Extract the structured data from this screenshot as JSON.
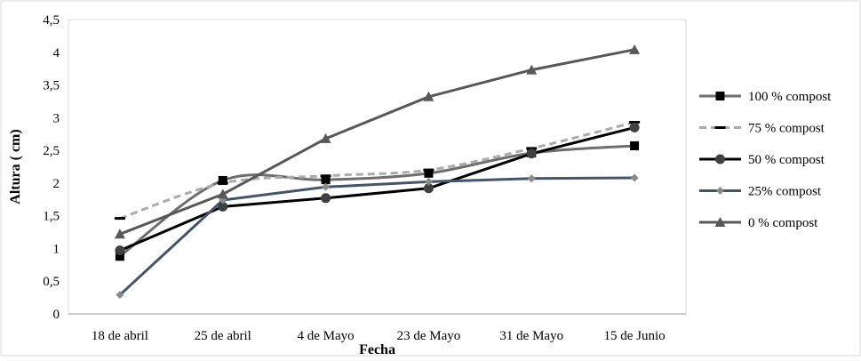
{
  "chart_data": {
    "type": "line",
    "title": "",
    "xlabel": "Fecha",
    "ylabel": "Altura ( cm)",
    "categories": [
      "18 de abril",
      "25 de abril",
      "4 de Mayo",
      "23 de Mayo",
      "31 de Mayo",
      "15 de Junio"
    ],
    "ylim": [
      0,
      4.5
    ],
    "yticks": [
      "0",
      "0,5",
      "1",
      "1,5",
      "2",
      "2,5",
      "3",
      "3,5",
      "4",
      "4,5"
    ],
    "ytick_values": [
      0,
      0.5,
      1,
      1.5,
      2,
      2.5,
      3,
      3.5,
      4,
      4.5
    ],
    "grid": false,
    "legend_position": "right",
    "series": [
      {
        "name": "100 % compost",
        "values": [
          0.88,
          2.04,
          2.05,
          2.15,
          2.46,
          2.57
        ],
        "color": "#6e6e6e",
        "dash": "solid",
        "marker": "square",
        "marker_color": "#000000",
        "smooth": true
      },
      {
        "name": "75 % compost",
        "values": [
          1.46,
          2.0,
          2.11,
          2.2,
          2.53,
          2.93
        ],
        "color": "#ababab",
        "dash": "dashed",
        "marker": "dash",
        "marker_color": "#000000",
        "smooth": true
      },
      {
        "name": "50 % compost",
        "values": [
          0.97,
          1.64,
          1.77,
          1.92,
          2.45,
          2.85
        ],
        "color": "#000000",
        "dash": "solid",
        "marker": "circle",
        "marker_color": "#404040",
        "smooth": false
      },
      {
        "name": "25% compost",
        "values": [
          0.29,
          1.74,
          1.94,
          2.02,
          2.07,
          2.08
        ],
        "color": "#44546a",
        "dash": "solid",
        "marker": "diamond",
        "marker_color": "#8a8a8a",
        "smooth": false
      },
      {
        "name": "0 % compost",
        "values": [
          1.22,
          1.83,
          2.68,
          3.32,
          3.73,
          4.04
        ],
        "color": "#585858",
        "dash": "solid",
        "marker": "triangle",
        "marker_color": "#585858",
        "smooth": false
      }
    ]
  }
}
